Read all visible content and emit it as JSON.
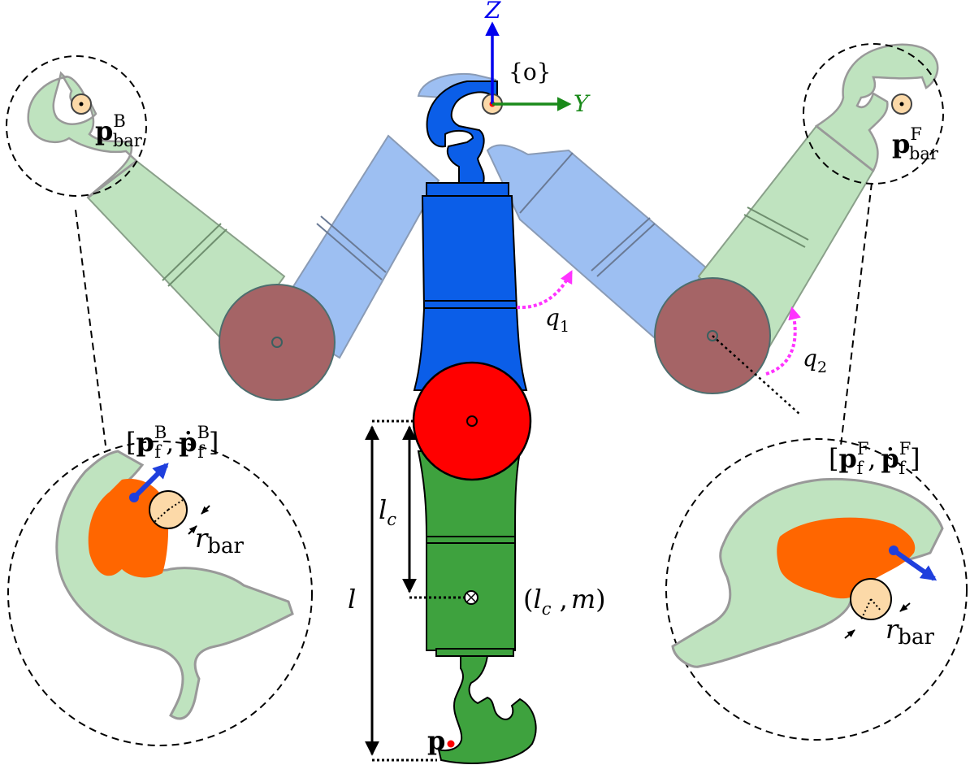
{
  "axes": {
    "z_label": "Z",
    "y_label": "Y",
    "origin_label": "{o}"
  },
  "labels": {
    "p_bar_back": {
      "main": "p",
      "sup": "B",
      "sub": "bar"
    },
    "p_bar_front": {
      "main": "p",
      "sup": "F",
      "sub": "bar"
    },
    "pf_back": {
      "open": "[",
      "p": "p",
      "sub": "f",
      "sup": "B",
      "comma": ",",
      "pdot": "ṗ",
      "close": "]"
    },
    "pf_front": {
      "open": "[",
      "p": "p",
      "sub": "f",
      "sup": "F",
      "comma": ",",
      "pdot": "ṗ",
      "close": "]"
    },
    "q1": {
      "main": "q",
      "sub": "1"
    },
    "q2": {
      "main": "q",
      "sub": "2"
    },
    "r_bar_back": {
      "main": "r",
      "sub": "bar"
    },
    "r_bar_front": {
      "main": "r",
      "sub": "bar"
    },
    "lc": {
      "main": "l",
      "sub": "c"
    },
    "l": "l",
    "lcm": {
      "open": "(",
      "l": "l",
      "sub": "c",
      "comma": " ,",
      "m": "m",
      "close": ")"
    },
    "p_end": "p"
  },
  "colors": {
    "blue_body": "#0b5ee8",
    "light_blue": "#9dbff2",
    "green_body": "#3ea23e",
    "light_green": "#bfe3bf",
    "red_disk": "#ff0000",
    "brown_disk": "#a56466",
    "orange": "#ff6600",
    "peach": "#fcd9a8",
    "magenta": "#ff33ff",
    "axis_blue": "#0000ee",
    "axis_green": "#1a8a1a",
    "arrow_blue": "#1f3fdd"
  }
}
